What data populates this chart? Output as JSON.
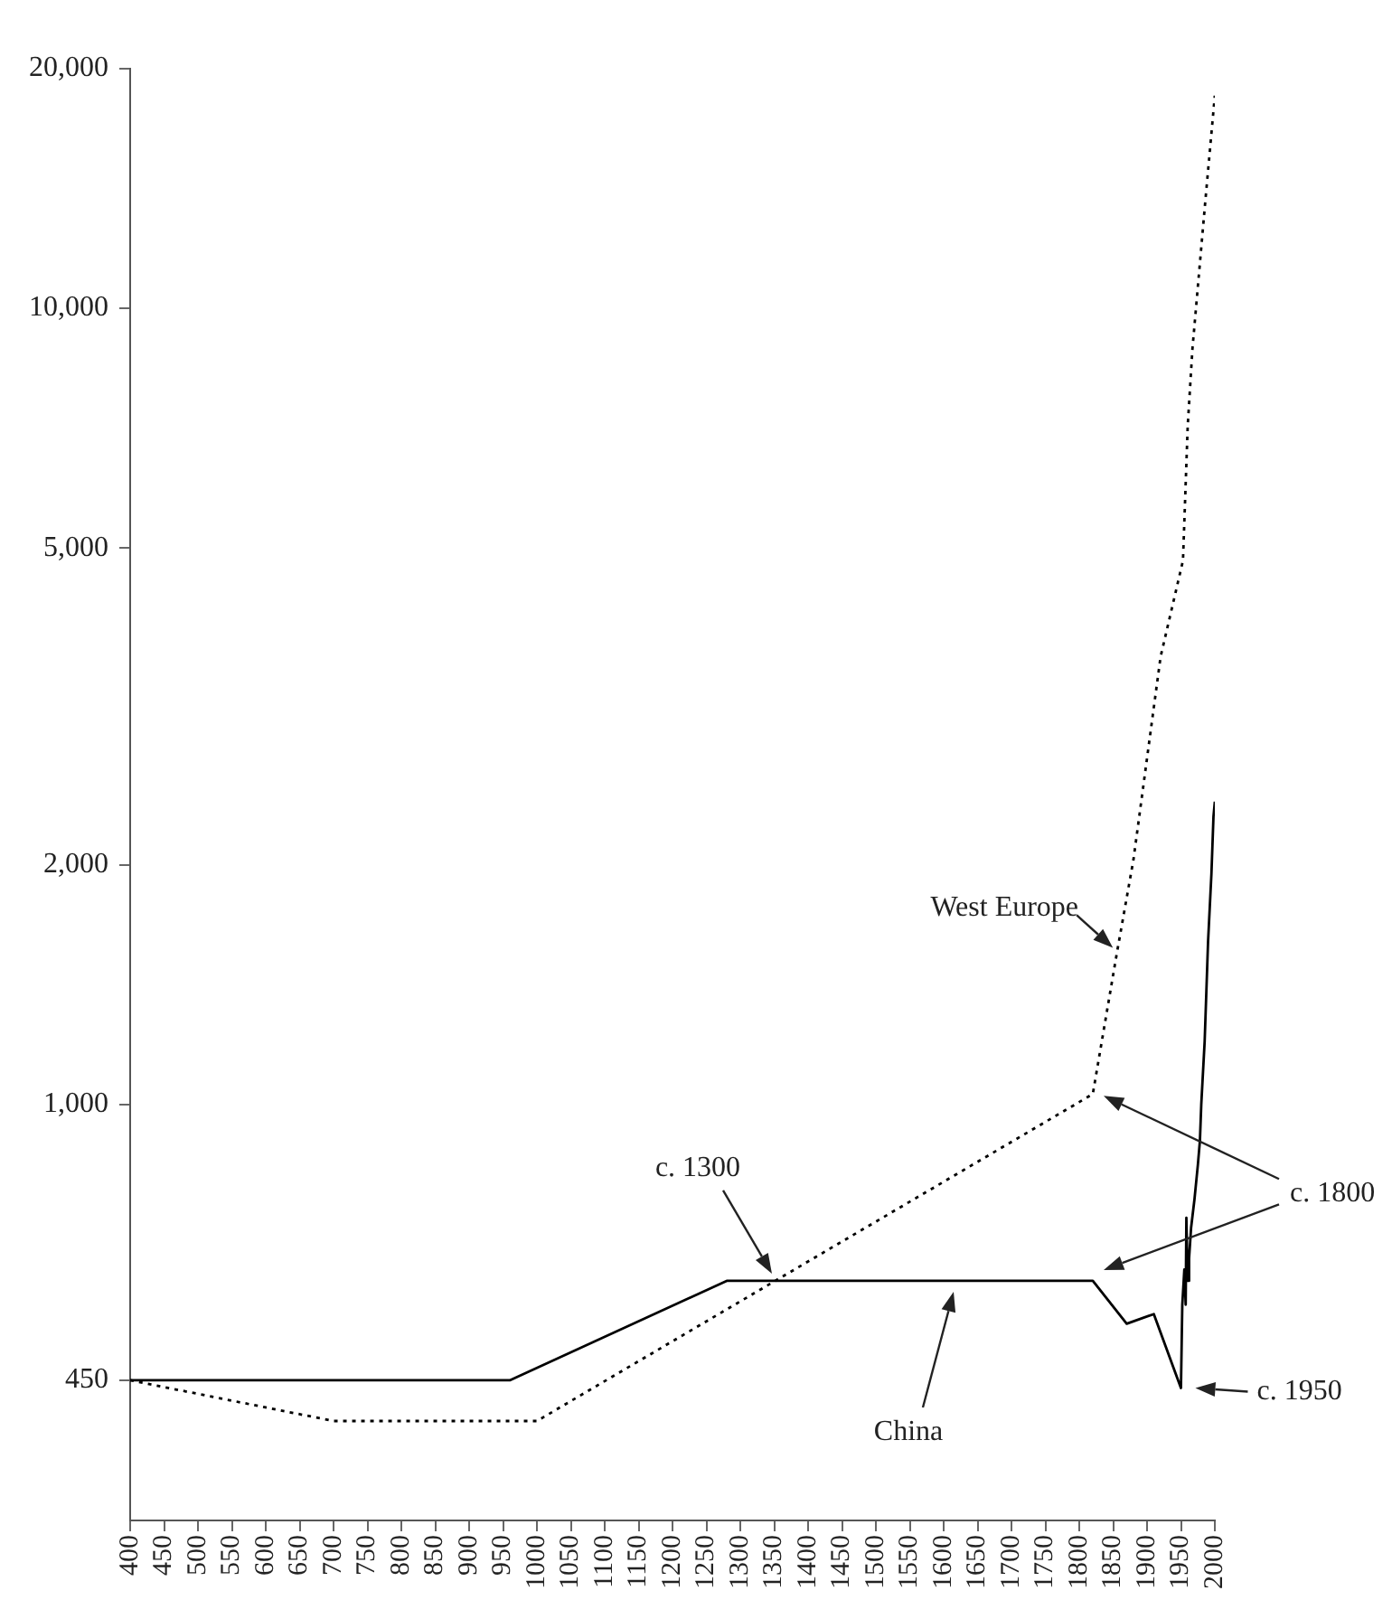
{
  "chart_data": {
    "type": "line",
    "xlim": [
      400,
      2000
    ],
    "xticks": [
      400,
      450,
      500,
      550,
      600,
      650,
      700,
      750,
      800,
      850,
      900,
      950,
      1000,
      1050,
      1100,
      1150,
      1200,
      1250,
      1300,
      1350,
      1400,
      1450,
      1500,
      1550,
      1600,
      1650,
      1700,
      1750,
      1800,
      1850,
      1900,
      1950,
      2000
    ],
    "ylim": [
      300,
      20000
    ],
    "yticks": [
      450,
      {
        "value": 1000,
        "label": "1,000"
      },
      {
        "value": 2000,
        "label": "2,000"
      },
      {
        "value": 5000,
        "label": "5,000"
      },
      {
        "value": 10000,
        "label": "10,000"
      },
      {
        "value": 20000,
        "label": "20,000"
      }
    ],
    "log": true,
    "grid": false,
    "legend": false,
    "marker": "none",
    "series": [
      {
        "name": "West Europe",
        "color": "#000000",
        "line_style": "dotted",
        "x": [
          400,
          700,
          1000,
          1820,
          1855,
          1880,
          1920,
          1953,
          1960,
          1967,
          1986,
          2000
        ],
        "values": [
          450,
          400,
          400,
          1030,
          1540,
          2030,
          3650,
          4820,
          7120,
          8900,
          13650,
          18500
        ]
      },
      {
        "name": "China",
        "color": "#000000",
        "line_style": "solid",
        "x": [
          400,
          960,
          1280,
          1820,
          1870,
          1910,
          1950,
          1952,
          1955,
          1957,
          1958,
          1960,
          1962,
          1965,
          1970,
          1975,
          1978,
          1980,
          1985,
          1990,
          1995,
          1998,
          2000
        ],
        "values": [
          450,
          450,
          600,
          600,
          530,
          545,
          440,
          560,
          620,
          560,
          720,
          600,
          640,
          700,
          760,
          840,
          900,
          1000,
          1200,
          1600,
          1950,
          2300,
          2400
        ]
      }
    ],
    "annotations": [
      "c. 1300",
      "c. 1800",
      {
        "text": "c. 1950",
        "x": 1950,
        "y": 440
      }
    ]
  }
}
